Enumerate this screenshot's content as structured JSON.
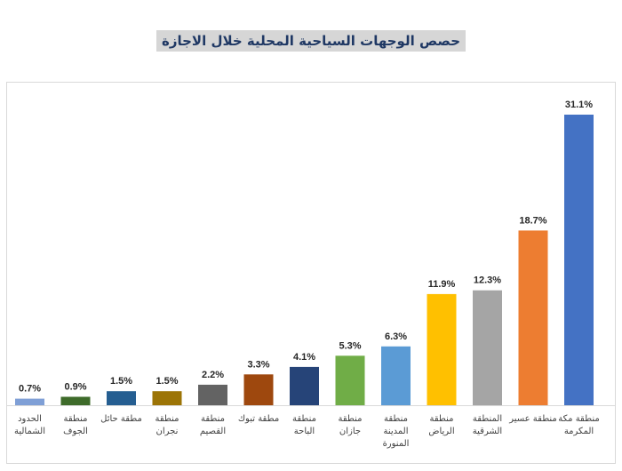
{
  "chart_data": {
    "type": "bar",
    "title": "حصص الوجهات السياحية المحلية خلال الاجازة",
    "xlabel": "",
    "ylabel": "",
    "ylim": [
      0,
      33
    ],
    "grid": false,
    "legend": "none",
    "categories": [
      [
        "الحدود",
        "الشمالية"
      ],
      [
        "منطقة",
        "الجوف"
      ],
      [
        "مطقة حائل"
      ],
      [
        "منطقة",
        "نجران"
      ],
      [
        "منطقة",
        "القصيم"
      ],
      [
        "مطقة تبوك"
      ],
      [
        "منطقة",
        "الباحة"
      ],
      [
        "منطقة",
        "جازان"
      ],
      [
        "منطقة",
        "المدينة",
        "المنورة"
      ],
      [
        "منطقة",
        "الرياض"
      ],
      [
        "المنطقة",
        "الشرقية"
      ],
      [
        "منطقة عسير"
      ],
      [
        "منطقة مكة",
        "المكرمة"
      ]
    ],
    "values": [
      0.7,
      0.9,
      1.5,
      1.5,
      2.2,
      3.3,
      4.1,
      5.3,
      6.3,
      11.9,
      12.3,
      18.7,
      31.1
    ],
    "value_labels": [
      "0.7%",
      "0.9%",
      "1.5%",
      "1.5%",
      "2.2%",
      "3.3%",
      "4.1%",
      "5.3%",
      "6.3%",
      "11.9%",
      "12.3%",
      "18.7%",
      "31.1%"
    ],
    "colors": [
      "#7f9fd6",
      "#3e6b2a",
      "#255e91",
      "#9c7406",
      "#636363",
      "#9e480e",
      "#264478",
      "#70ad47",
      "#5b9bd5",
      "#ffc000",
      "#a5a5a5",
      "#ed7d31",
      "#4472c4"
    ]
  }
}
